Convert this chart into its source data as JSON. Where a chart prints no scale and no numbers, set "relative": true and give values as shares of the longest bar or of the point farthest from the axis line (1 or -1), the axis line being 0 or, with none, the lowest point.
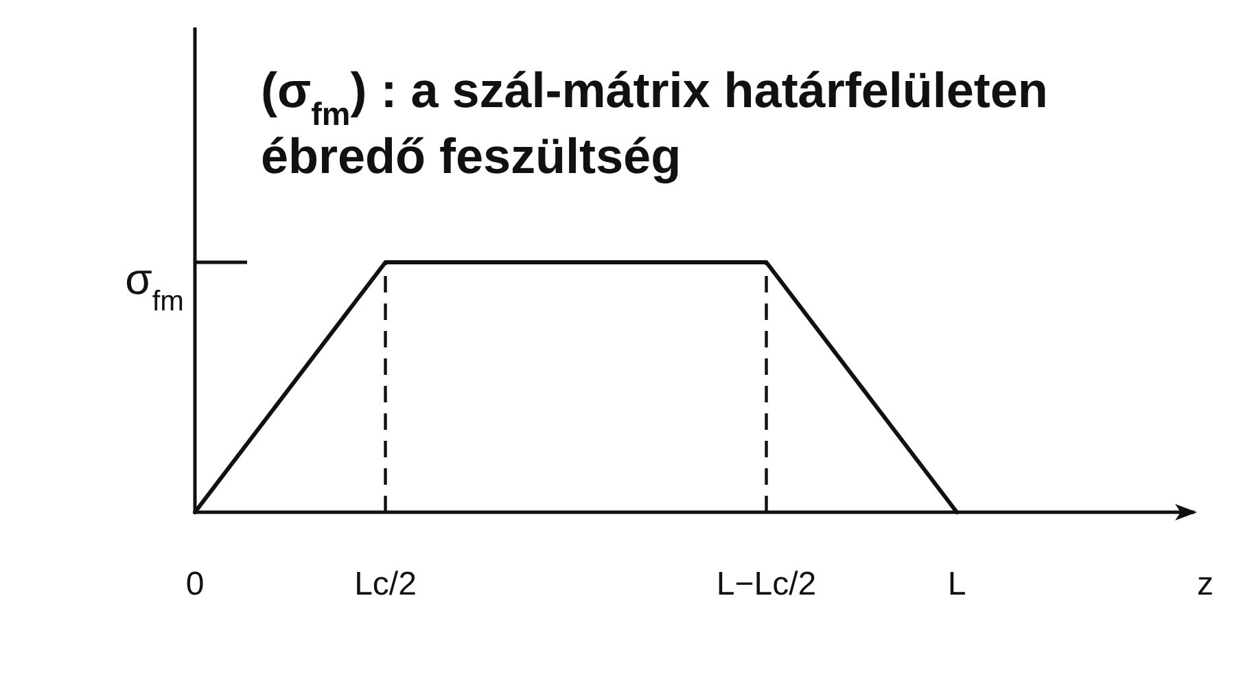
{
  "chart_data": {
    "type": "line",
    "title": "(σ$_{fm}$) : a szál-mátrix határfelületen ébredő feszültség",
    "xlabel": "z",
    "categories": [
      "0",
      "Lc/2",
      null,
      "L−Lc/2",
      "L"
    ],
    "relative": true,
    "series": [
      {
        "color": "#111111",
        "values": [
          0,
          1,
          1,
          1,
          0
        ]
      }
    ],
    "ref_lines": [
      {
        "axis": "x",
        "value": "Lc/2",
        "color": "#111111",
        "line_style": "dashed"
      },
      {
        "axis": "x",
        "value": "L−Lc/2",
        "color": "#111111",
        "line_style": "dashed"
      }
    ],
    "annotations": [
      "σ$_{fm}$"
    ]
  }
}
